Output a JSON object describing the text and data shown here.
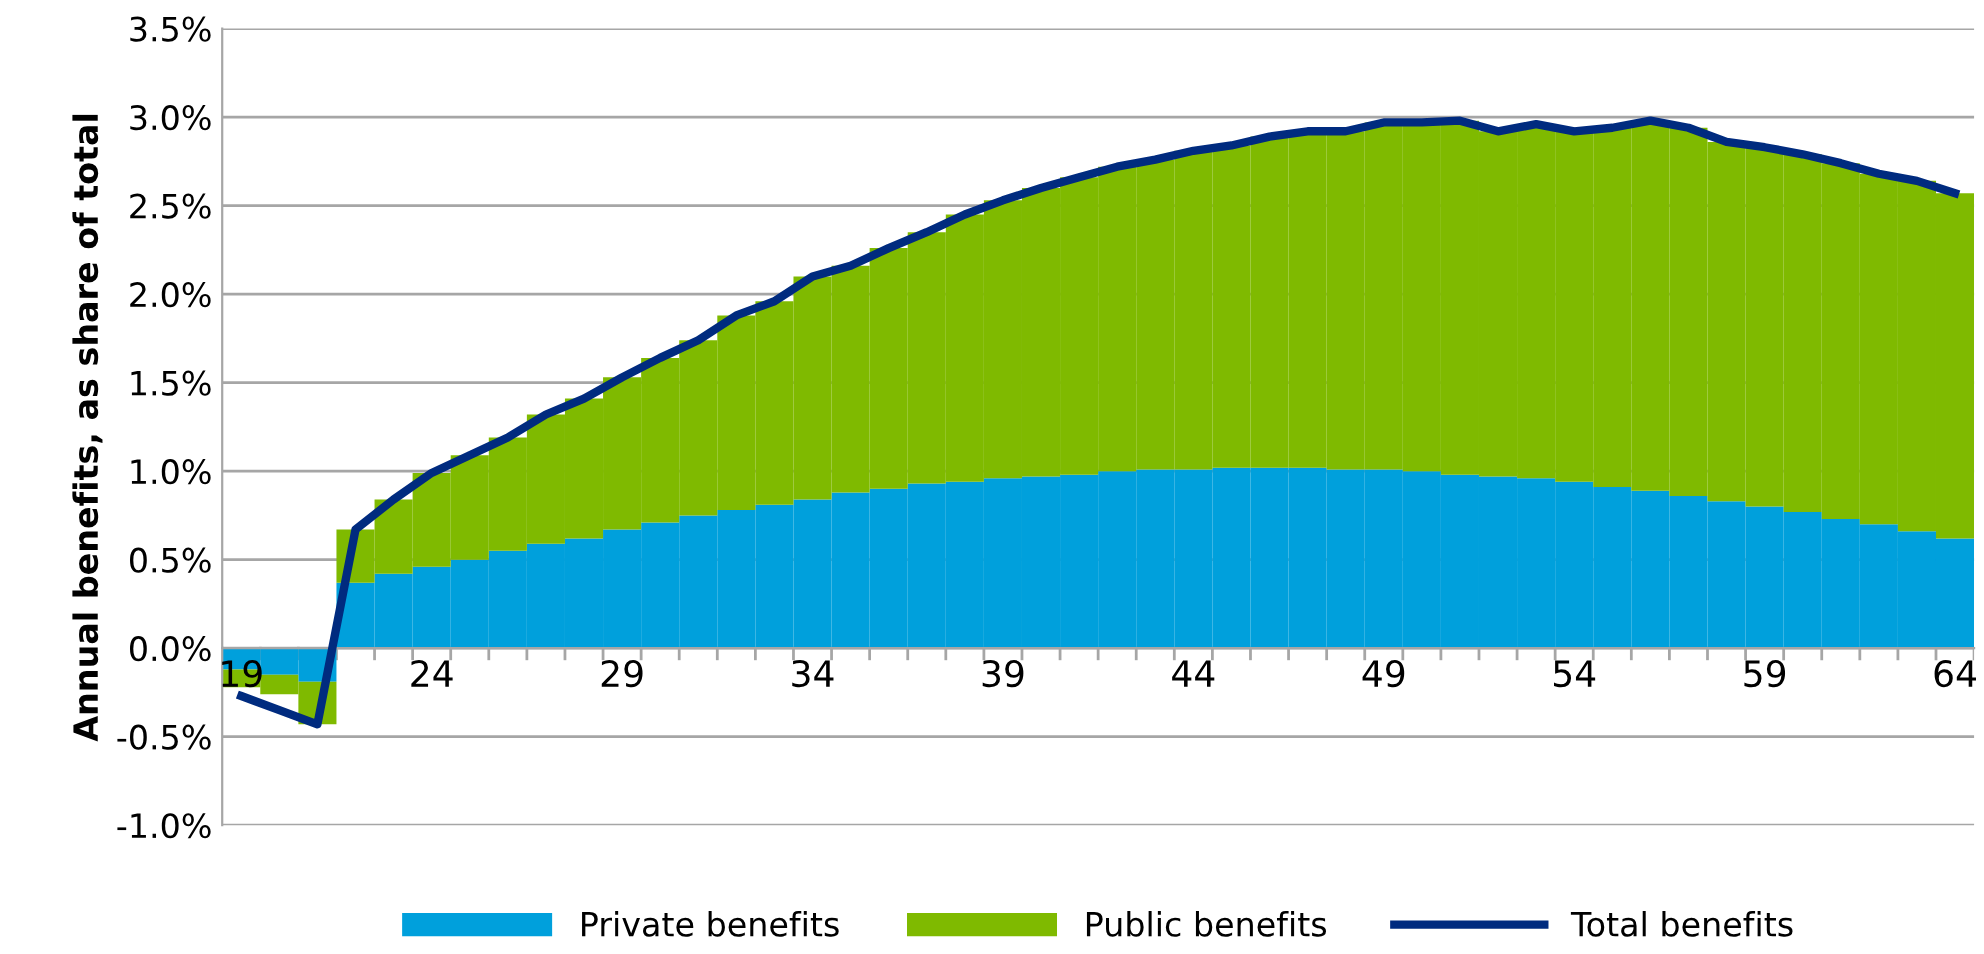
{
  "chart_data": {
    "type": "bar",
    "stacked": true,
    "ylabel": "Annual benefits, as share of total",
    "categories": [
      "19",
      null,
      null,
      null,
      null,
      "24",
      null,
      null,
      null,
      null,
      "29",
      null,
      null,
      null,
      null,
      "34",
      null,
      null,
      null,
      null,
      "39",
      null,
      null,
      null,
      null,
      "44",
      null,
      null,
      null,
      null,
      "49",
      null,
      null,
      null,
      null,
      "54",
      null,
      null,
      null,
      null,
      "59",
      null,
      null,
      null,
      null,
      "64"
    ],
    "series": [
      {
        "name": "Private benefits",
        "color": "#00a0dc",
        "values": [
          -0.12,
          -0.15,
          -0.19,
          0.37,
          0.42,
          0.46,
          0.5,
          0.55,
          0.59,
          0.62,
          0.67,
          0.71,
          0.75,
          0.78,
          0.81,
          0.84,
          0.88,
          0.9,
          0.93,
          0.94,
          0.96,
          0.97,
          0.98,
          1.0,
          1.01,
          1.01,
          1.02,
          1.02,
          1.02,
          1.01,
          1.01,
          1.0,
          0.98,
          0.97,
          0.96,
          0.94,
          0.91,
          0.89,
          0.86,
          0.83,
          0.8,
          0.77,
          0.73,
          0.7,
          0.66,
          0.62
        ]
      },
      {
        "name": "Public benefits",
        "color": "#7fba00",
        "values": [
          -0.1,
          -0.11,
          -0.24,
          0.3,
          0.42,
          0.53,
          0.59,
          0.64,
          0.73,
          0.79,
          0.86,
          0.93,
          0.99,
          1.1,
          1.15,
          1.26,
          1.28,
          1.36,
          1.42,
          1.51,
          1.57,
          1.63,
          1.68,
          1.72,
          1.75,
          1.8,
          1.82,
          1.87,
          1.9,
          1.91,
          1.96,
          1.97,
          2.0,
          1.95,
          2.0,
          1.98,
          2.03,
          2.09,
          2.08,
          2.03,
          2.03,
          2.02,
          2.01,
          1.98,
          1.98,
          1.95
        ]
      },
      {
        "name": "Total benefits",
        "type": "line",
        "color": "#002b7f",
        "values": [
          -0.27,
          -0.35,
          -0.43,
          0.67,
          0.84,
          0.99,
          1.09,
          1.19,
          1.32,
          1.41,
          1.53,
          1.64,
          1.74,
          1.88,
          1.96,
          2.1,
          2.16,
          2.26,
          2.35,
          2.45,
          2.53,
          2.6,
          2.66,
          2.72,
          2.76,
          2.81,
          2.84,
          2.89,
          2.92,
          2.92,
          2.97,
          2.97,
          2.98,
          2.92,
          2.96,
          2.92,
          2.94,
          2.98,
          2.94,
          2.86,
          2.83,
          2.79,
          2.74,
          2.68,
          2.64,
          2.57
        ]
      }
    ],
    "ylim": [
      -1.0,
      3.5
    ],
    "yticks": [
      {
        "value": -1.0,
        "label": "-1.0%"
      },
      {
        "value": -0.5,
        "label": "-0.5%"
      },
      {
        "value": 0,
        "label": "0.0%"
      },
      {
        "value": 0.5,
        "label": "0.5%"
      },
      {
        "value": 1.0,
        "label": "1.0%"
      },
      {
        "value": 1.5,
        "label": "1.5%"
      },
      {
        "value": 2.0,
        "label": "2.0%"
      },
      {
        "value": 2.5,
        "label": "2.5%"
      },
      {
        "value": 3.0,
        "label": "3.0%"
      },
      {
        "value": 3.5,
        "label": "3.5%"
      }
    ],
    "grid": "y",
    "legend": "bottom",
    "marker": "none",
    "line_style": "solid"
  }
}
